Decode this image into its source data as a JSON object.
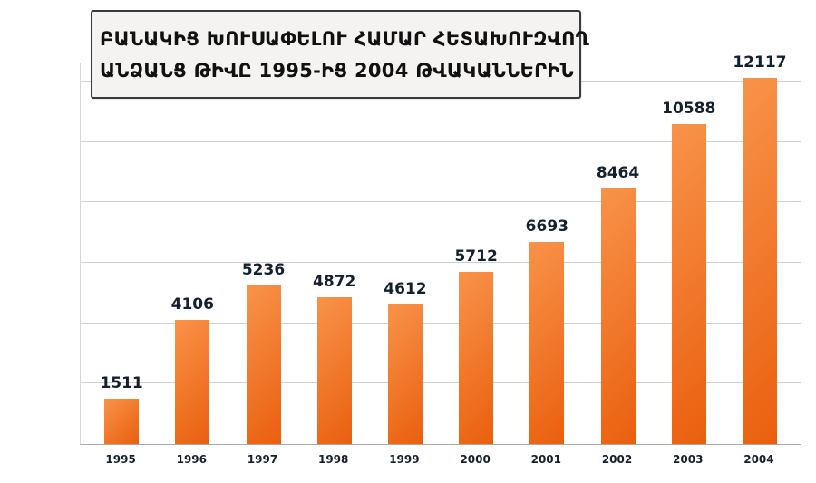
{
  "title": {
    "line1": "ԲԱՆԱԿԻՑ ԽՈՒՍԱՓԵԼՈՒ ՀԱՄԱՐ ՀԵՏԱԽՈՒԶՎՈՂ",
    "line2": "ԱՆՁԱՆՑ ԹԻՎԸ 1995-ԻՑ 2004 ԹՎԱԿԱՆՆԵՐԻՆ"
  },
  "chart_data": {
    "type": "bar",
    "title": "ԲԱՆԱԿԻՑ ԽՈՒՍԱՓԵԼՈՒ ՀԱՄԱՐ ՀԵՏԱԽՈՒԶՎՈՂ ԱՆՁԱՆՑ ԹԻՎԸ 1995-ԻՑ 2004 ԹՎԱԿԱՆՆԵՐԻՆ",
    "categories": [
      "1995",
      "1996",
      "1997",
      "1998",
      "1999",
      "2000",
      "2001",
      "2002",
      "2003",
      "2004"
    ],
    "values": [
      1511,
      4106,
      5236,
      4872,
      4612,
      5712,
      6693,
      8464,
      10588,
      12117
    ],
    "xlabel": "",
    "ylabel": "",
    "ylim": [
      0,
      12600
    ],
    "gridline_step": 2000,
    "grid": true,
    "legend": "none",
    "data_labels": true,
    "bar_color_start": "#f8934a",
    "bar_color_end": "#ea5f0e",
    "grid_color": "#cfcfcf",
    "axis_color": "#a8a8a8",
    "label_color": "#14202e"
  }
}
